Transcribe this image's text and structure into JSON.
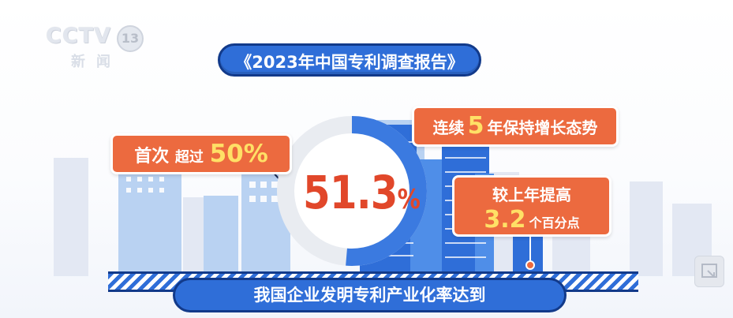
{
  "logo": {
    "main": "CCTV",
    "number": "13",
    "sub": "新闻"
  },
  "title": "《2023年中国专利调查报告》",
  "headline": {
    "value": "51.3",
    "unit": "%"
  },
  "callout_left": {
    "prefix": "首次",
    "middle": "超过",
    "value": "50%"
  },
  "callout_right_top": {
    "prefix": "连续",
    "value": "5",
    "suffix": "年保持增长态势"
  },
  "callout_right_bottom": {
    "line1": "较上年提高",
    "value": "3.2",
    "unit": "个百分点"
  },
  "bottom_caption": "我国企业发明专利产业化率达到",
  "ring_progress": 0.513,
  "colors": {
    "accent_orange": "#ec6a3f",
    "highlight": "#e1472a",
    "brand_blue": "#2f6ed8",
    "dark_blue": "#123a8a"
  },
  "icons": {
    "corner": "screen-expand-icon"
  }
}
